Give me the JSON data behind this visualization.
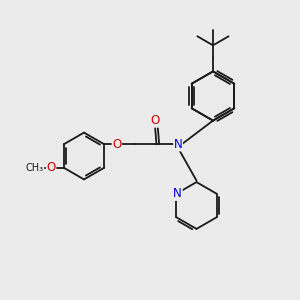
{
  "bg_color": "#ebebeb",
  "bond_color": "#1a1a1a",
  "bond_width": 1.3,
  "atom_colors": {
    "O": "#cc0000",
    "N": "#0000cc",
    "C": "#1a1a1a"
  },
  "font_size": 8.5,
  "fig_size": [
    3.0,
    3.0
  ],
  "dpi": 100
}
